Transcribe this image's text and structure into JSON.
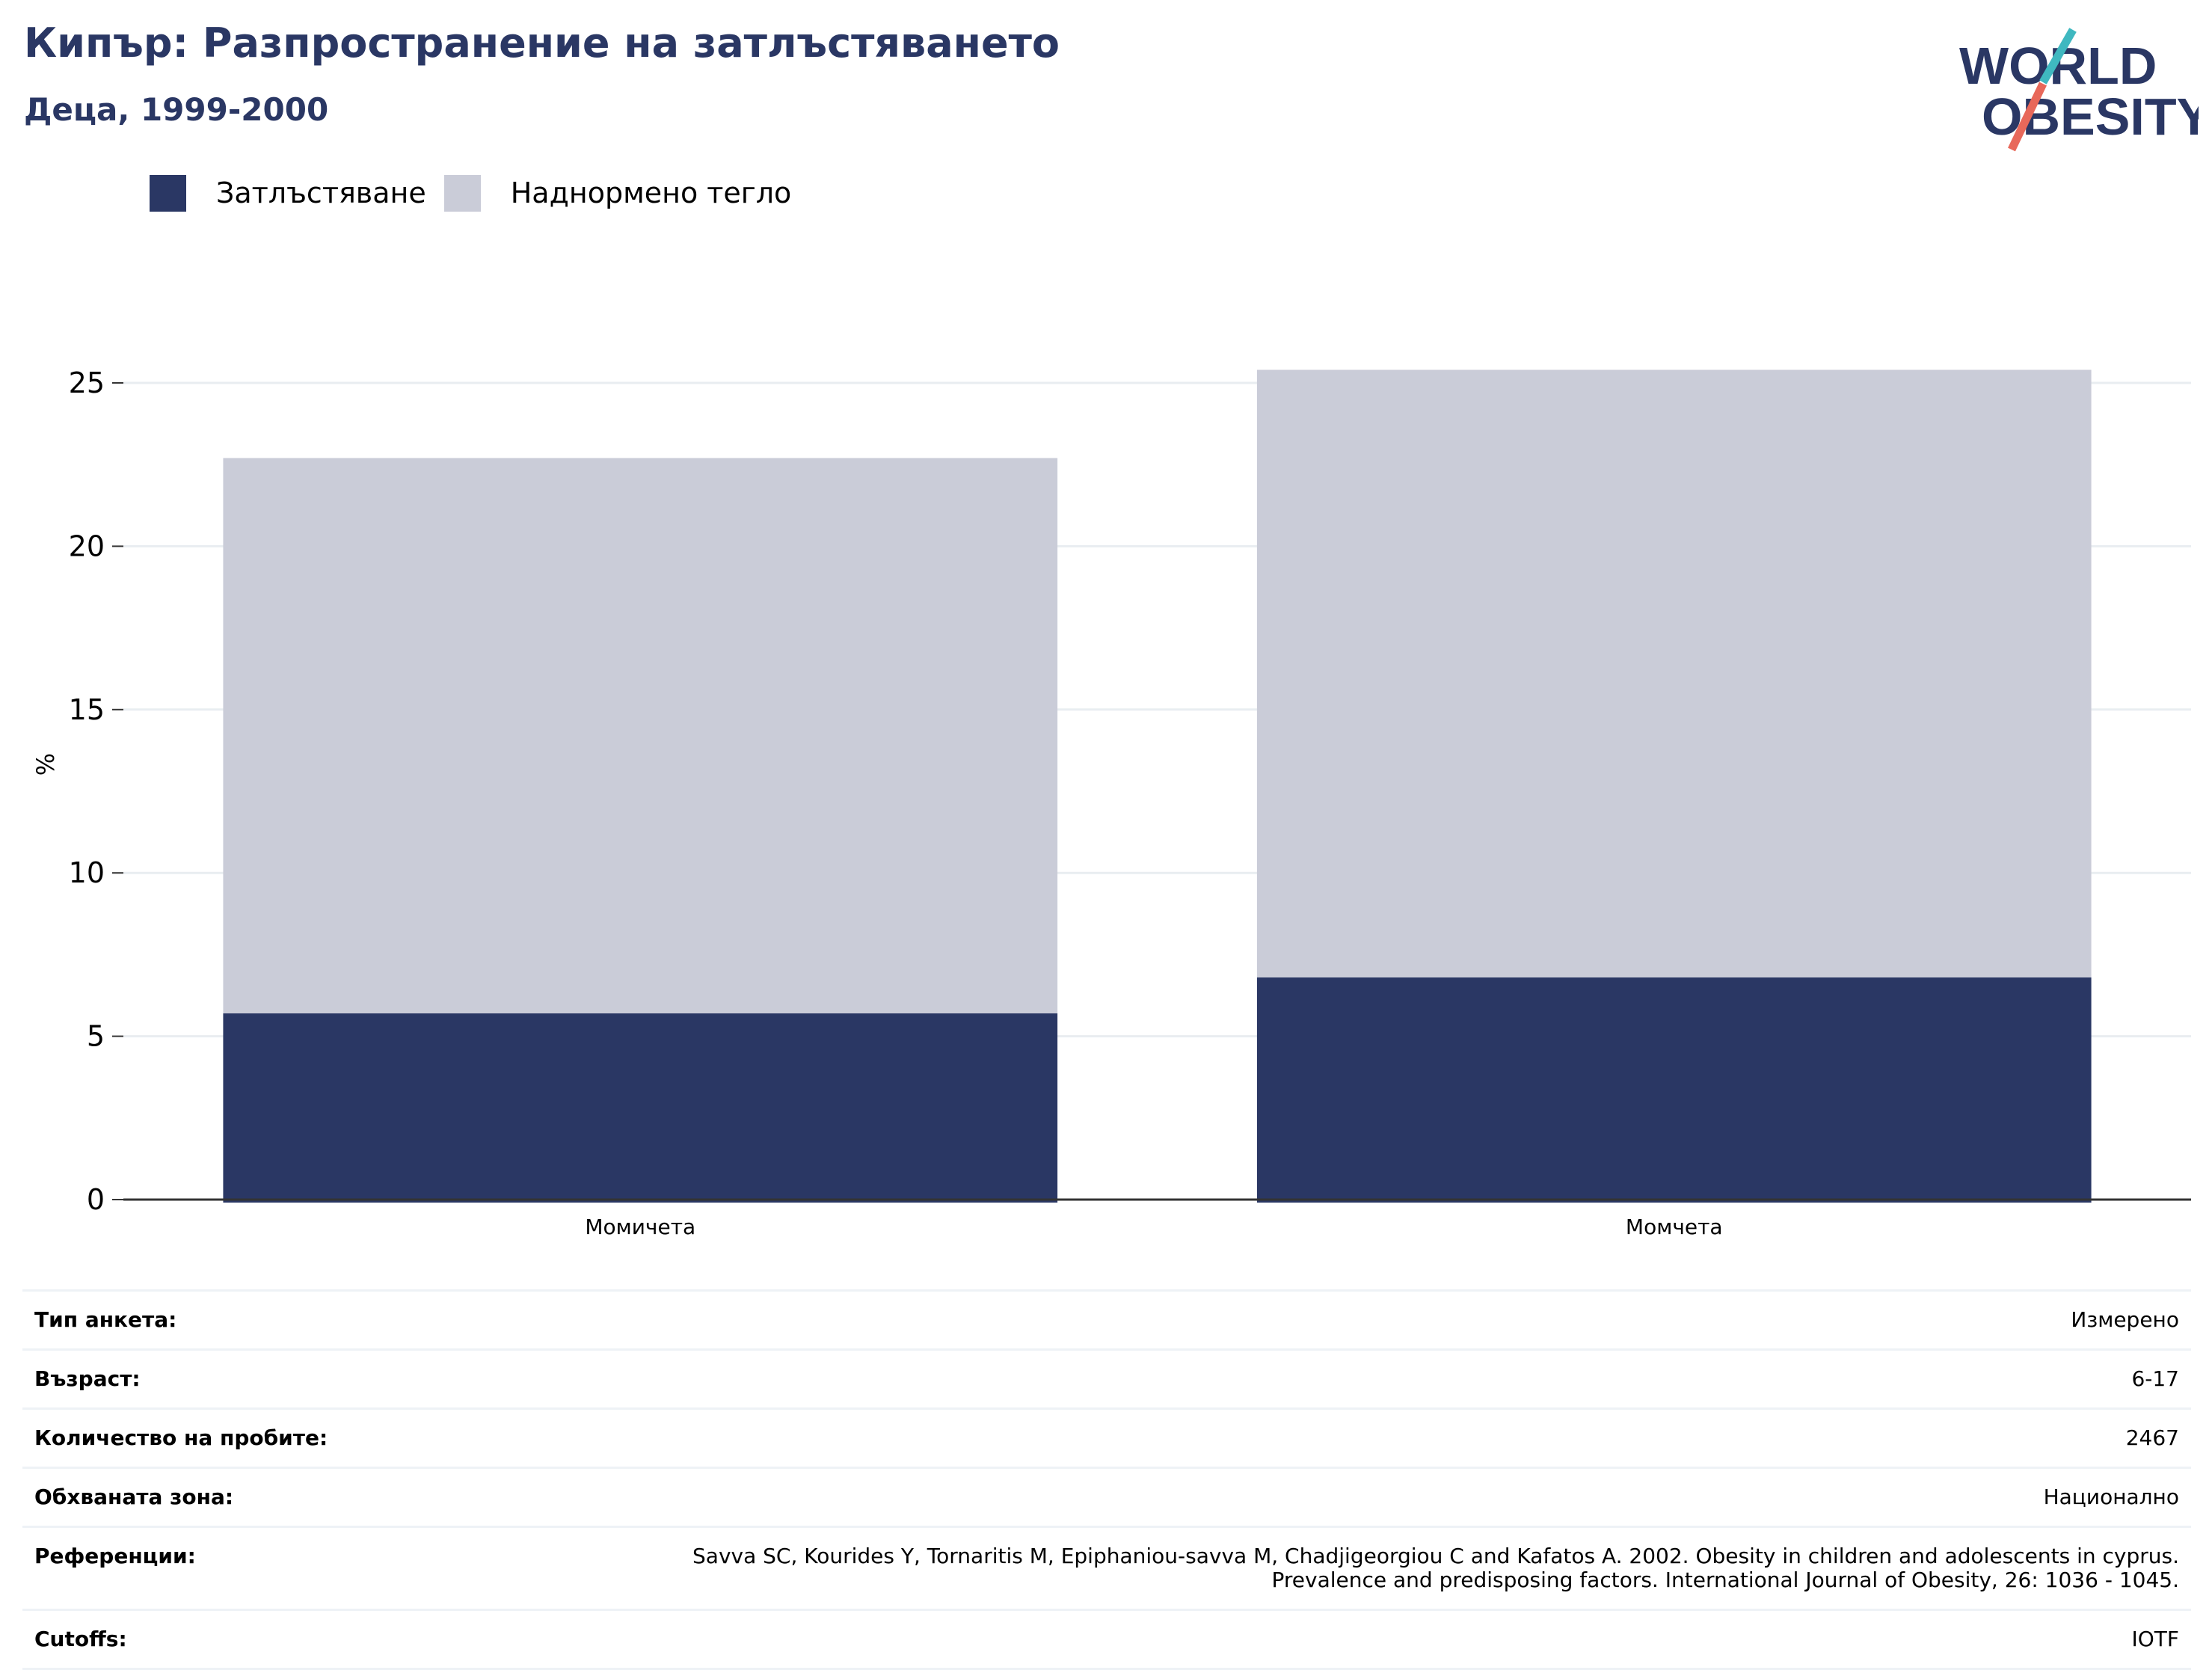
{
  "header": {
    "title": "Кипър: Разпространение на затлъстяването",
    "subtitle": "Деца, 1999-2000",
    "logo_text": [
      "WORLD",
      "OBESITY"
    ]
  },
  "colors": {
    "obesity": "#2a3764",
    "overweight": "#caccd8",
    "title": "#2a3764",
    "grid": "#e9edf1",
    "logo_teal": "#3fb8c0",
    "logo_coral": "#e8685a"
  },
  "chart_data": {
    "type": "bar",
    "stacked": true,
    "categories": [
      "Момичета",
      "Момчета"
    ],
    "series": [
      {
        "name": "Затлъстяване",
        "values": [
          5.7,
          6.8
        ]
      },
      {
        "name": "Наднормено тегло",
        "values": [
          17.0,
          18.6
        ]
      }
    ],
    "title": "",
    "xlabel": "",
    "ylabel": "%",
    "ylim": [
      0,
      27
    ],
    "yticks": [
      0,
      5,
      10,
      15,
      20,
      25
    ],
    "grid": true,
    "legend_position": "top-left"
  },
  "meta": {
    "rows": [
      {
        "key": "Тип анкета:",
        "value": "Измерено"
      },
      {
        "key": "Възраст:",
        "value": "6-17"
      },
      {
        "key": "Количество на пробите:",
        "value": "2467"
      },
      {
        "key": "Обхваната зона:",
        "value": "Национално"
      },
      {
        "key": "Референции:",
        "value": "Savva SC, Kourides Y, Tornaritis M, Epiphaniou-savva M, Chadjigeorgiou C and Kafatos A. 2002. Obesity in children and adolescents in cyprus.",
        "value2": "Prevalence and predisposing factors. International Journal of Obesity, 26: 1036 - 1045."
      },
      {
        "key": "Cutoffs:",
        "value": "IOTF"
      }
    ]
  }
}
